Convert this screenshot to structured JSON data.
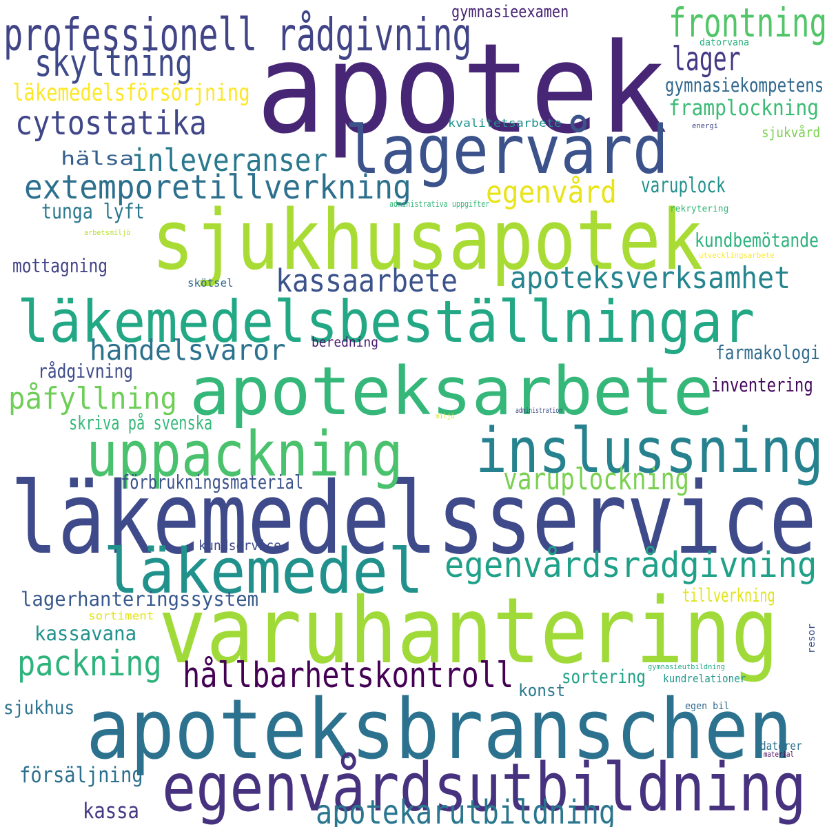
{
  "words": [
    {
      "text": "apotek",
      "color": "#472676"
    },
    {
      "text": "sjukhusapotek",
      "color": "#a8db34"
    },
    {
      "text": "läkemedelsservice",
      "color": "#3e4a89"
    },
    {
      "text": "varuhantering",
      "color": "#a0da39"
    },
    {
      "text": "apoteksbranschen",
      "color": "#2c728e"
    },
    {
      "text": "lagervård",
      "color": "#3b528b"
    },
    {
      "text": "apoteksarbete",
      "color": "#35b779"
    },
    {
      "text": "läkemedelsbeställningar",
      "color": "#22a884"
    },
    {
      "text": "inslussning",
      "color": "#26828e"
    },
    {
      "text": "uppackning",
      "color": "#4ac16d"
    },
    {
      "text": "läkemedel",
      "color": "#21918c"
    },
    {
      "text": "egenvårdsutbildning",
      "color": "#46327e"
    },
    {
      "text": "professionell rådgivning",
      "color": "#414487"
    },
    {
      "text": "frontning",
      "color": "#52c569"
    },
    {
      "text": "skyltning",
      "color": "#3e4989"
    },
    {
      "text": "lager",
      "color": "#443983"
    },
    {
      "text": "cytostatika",
      "color": "#404688"
    },
    {
      "text": "inleveranser",
      "color": "#2a788e"
    },
    {
      "text": "extemporetillverkning",
      "color": "#2d708e"
    },
    {
      "text": "egenvård",
      "color": "#e8e419"
    },
    {
      "text": "kassaarbete",
      "color": "#3b528b"
    },
    {
      "text": "apoteksverksamhet",
      "color": "#25858e"
    },
    {
      "text": "handelsvaror",
      "color": "#2c728e"
    },
    {
      "text": "påfyllning",
      "color": "#6ece58"
    },
    {
      "text": "egenvårdsrådgivning",
      "color": "#1fa088"
    },
    {
      "text": "varuplockning",
      "color": "#7ad151"
    },
    {
      "text": "packning",
      "color": "#2eb37c"
    },
    {
      "text": "hållbarhetskontroll",
      "color": "#440154"
    },
    {
      "text": "apotekarutbildning",
      "color": "#2a768e"
    },
    {
      "text": "läkemedelsförsörjning",
      "color": "#fde725"
    },
    {
      "text": "gymnasiekompetens",
      "color": "#31688e"
    },
    {
      "text": "framplockning",
      "color": "#3bbb75"
    },
    {
      "text": "gymnasieexamen",
      "color": "#482475"
    },
    {
      "text": "hälsa",
      "color": "#355f8d"
    },
    {
      "text": "tunga lyft",
      "color": "#2a788e"
    },
    {
      "text": "varuplock",
      "color": "#21918c"
    },
    {
      "text": "kundbemötande",
      "color": "#2db27d"
    },
    {
      "text": "mottagning",
      "color": "#414487"
    },
    {
      "text": "rådgivning",
      "color": "#3e4c8a"
    },
    {
      "text": "skriva på svenska",
      "color": "#35b779"
    },
    {
      "text": "farmakologi",
      "color": "#2f6c8e"
    },
    {
      "text": "inventering",
      "color": "#46085c"
    },
    {
      "text": "förbrukningsmaterial",
      "color": "#3b528b"
    },
    {
      "text": "lagerhanteringssystem",
      "color": "#38598c"
    },
    {
      "text": "tillverkning",
      "color": "#e2e418"
    },
    {
      "text": "kassavana",
      "color": "#21918c"
    },
    {
      "text": "sortering",
      "color": "#1fa187"
    },
    {
      "text": "sjukhus",
      "color": "#2c728e"
    },
    {
      "text": "konst",
      "color": "#2a788e"
    },
    {
      "text": "försäljning",
      "color": "#2d708e"
    },
    {
      "text": "kassa",
      "color": "#443a83"
    },
    {
      "text": "kundservice",
      "color": "#3e4989"
    },
    {
      "text": "beredning",
      "color": "#481a6c"
    },
    {
      "text": "sjukvård",
      "color": "#7ad151"
    },
    {
      "text": "kvalitetsarbete",
      "color": "#21918c"
    },
    {
      "text": "datorvana",
      "color": "#2ab07f"
    },
    {
      "text": "energi",
      "color": "#3e4a89"
    },
    {
      "text": "administrativa uppgifter",
      "color": "#35b779"
    },
    {
      "text": "rekrytering",
      "color": "#35b779"
    },
    {
      "text": "arbetsmiljö",
      "color": "#b5de2b"
    },
    {
      "text": "utvecklingsarbete",
      "color": "#fde725"
    },
    {
      "text": "skötsel",
      "color": "#31688e"
    },
    {
      "text": "sortiment",
      "color": "#e5e419"
    },
    {
      "text": "miljö",
      "color": "#d8e219"
    },
    {
      "text": "administration",
      "color": "#3e4989"
    },
    {
      "text": "resor",
      "color": "#3b528b"
    },
    {
      "text": "gymnasieutbildning",
      "color": "#22a884"
    },
    {
      "text": "kundrelationer",
      "color": "#1f988b"
    },
    {
      "text": "egen bil",
      "color": "#31688e"
    },
    {
      "text": "datorer",
      "color": "#2c728e"
    },
    {
      "text": "material",
      "color": "#440154"
    }
  ]
}
